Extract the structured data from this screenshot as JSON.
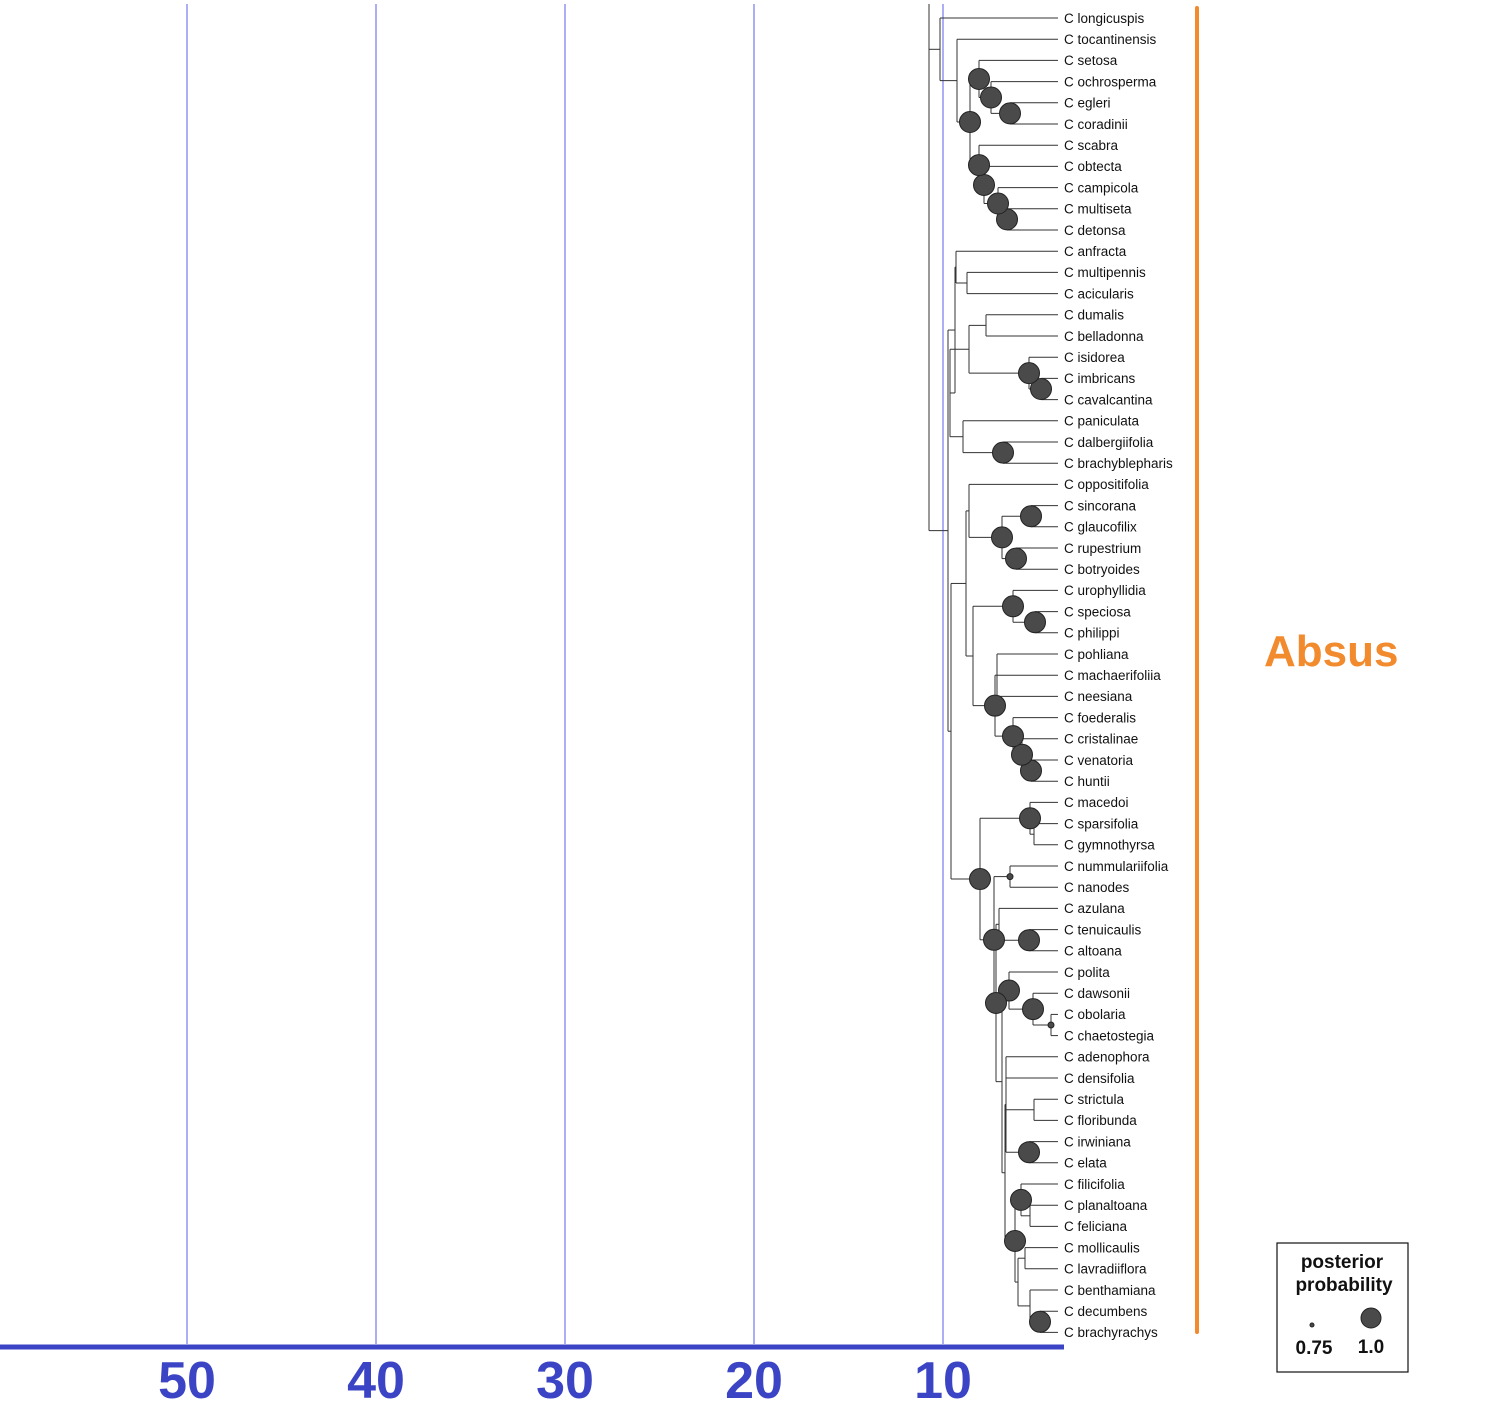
{
  "axis": {
    "ticks": [
      "50",
      "40",
      "30",
      "20",
      "10"
    ],
    "tick_values": [
      50,
      40,
      30,
      20,
      10
    ],
    "line_color": "#3b44c4",
    "grid_color": "#5a5ff0"
  },
  "clade": {
    "label": "Absus",
    "color": "#f28a2e"
  },
  "legend": {
    "title_line1": "posterior",
    "title_line2": "probability",
    "small_label": "0.75",
    "large_label": "1.0"
  },
  "taxa": [
    "C longicuspis",
    "C tocantinensis",
    "C setosa",
    "C ochrosperma",
    "C egleri",
    "C coradinii",
    "C scabra",
    "C obtecta",
    "C campicola",
    "C multiseta",
    "C detonsa",
    "C anfracta",
    "C multipennis",
    "C acicularis",
    "C dumalis",
    "C belladonna",
    "C isidorea",
    "C imbricans",
    "C cavalcantina",
    "C paniculata",
    "C dalbergiifolia",
    "C brachyblepharis",
    "C oppositifolia",
    "C sincorana",
    "C glaucofilix",
    "C rupestrium",
    "C botryoides",
    "C urophyllidia",
    "C speciosa",
    "C philippi",
    "C pohliana",
    "C machaerifoliia",
    "C neesiana",
    "C foederalis",
    "C cristalinae",
    "C venatoria",
    "C huntii",
    "C macedoi",
    "C sparsifolia",
    "C gymnothyrsa",
    "C nummulariifolia",
    "C nanodes",
    "C azulana",
    "C tenuicaulis",
    "C altoana",
    "C polita",
    "C dawsonii",
    "C obolaria",
    "C chaetostegia",
    "C adenophora",
    "C densifolia",
    "C strictula",
    "C floribunda",
    "C irwiniana",
    "C elata",
    "C filicifolia",
    "C planaltoana",
    "C feliciana",
    "C mollicaulis",
    "C lavradiiflora",
    "C benthamiana",
    "C decumbens",
    "C brachyrachys"
  ]
}
